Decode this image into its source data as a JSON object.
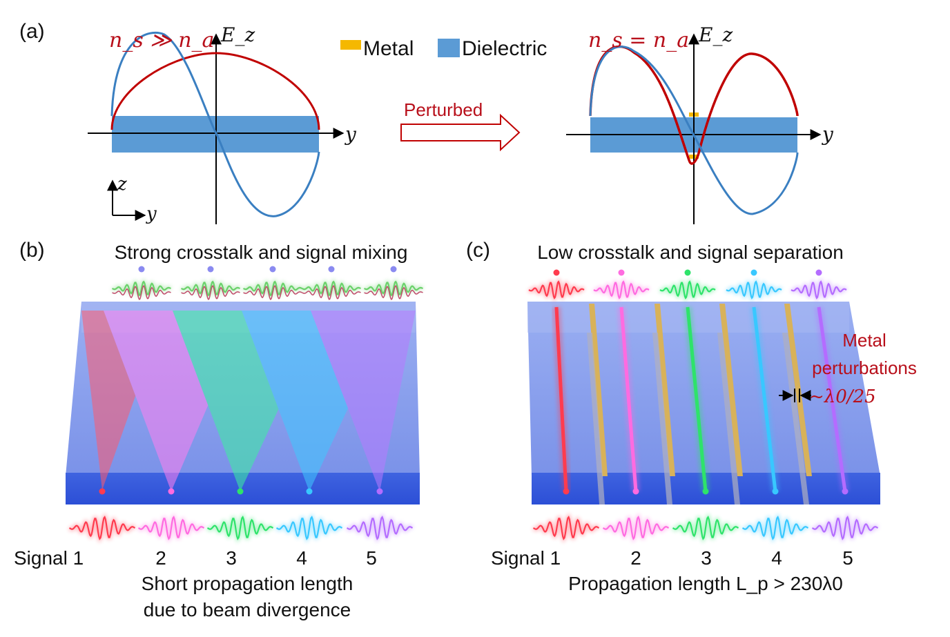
{
  "panel_a": {
    "label": "(a)",
    "left_condition": "n_s ≫ n_a",
    "right_condition": "n_s = n_a",
    "field_axis": "E_z",
    "axis_y": "y",
    "axis_z": "z",
    "legend": {
      "metal": "Metal",
      "dielectric": "Dielectric"
    },
    "arrow_label": "Perturbed"
  },
  "panel_b": {
    "label": "(b)",
    "title": "Strong crosstalk and signal mixing",
    "signals": [
      "Signal 1",
      "2",
      "3",
      "4",
      "5"
    ],
    "caption_line1": "Short propagation length",
    "caption_line2": "due to beam divergence"
  },
  "panel_c": {
    "label": "(c)",
    "title": "Low crosstalk and signal separation",
    "signals": [
      "Signal 1",
      "2",
      "3",
      "4",
      "5"
    ],
    "annotation_line1": "Metal",
    "annotation_line2": "perturbations",
    "annotation_line3": "~λ0/25",
    "caption": "Propagation length L_p > 230λ0"
  },
  "colors": {
    "dielectric": "#5b9bd5",
    "metal": "#f5b800",
    "field_curve_a": "#c00000",
    "field_curve_b": "#3a7fc1",
    "signal_colors": [
      "#ff3b4e",
      "#ff6be0",
      "#2ee36a",
      "#38c8ff",
      "#b46cff"
    ]
  }
}
